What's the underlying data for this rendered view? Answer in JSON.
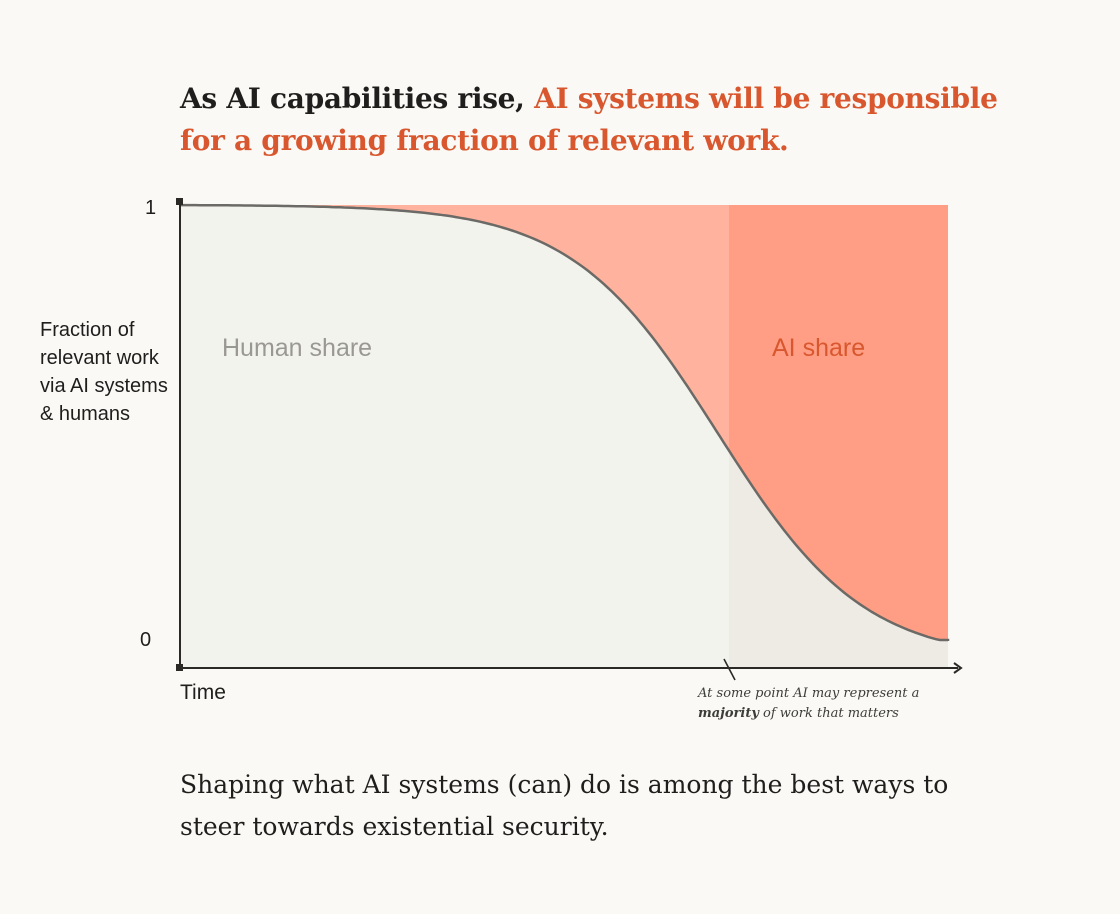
{
  "headline": {
    "part1": "As AI capabilities rise, ",
    "part2": "AI systems will be responsible for a growing fraction of relevant work."
  },
  "chart_data": {
    "type": "area",
    "ylabel": "Fraction of relevant work via AI systems & humans",
    "xlabel": "Time",
    "y_ticks": [
      "1",
      "0"
    ],
    "ylim": [
      0,
      1
    ],
    "regions": [
      {
        "name": "Human share",
        "position": "below curve",
        "color": "#f3f3ee"
      },
      {
        "name": "AI share",
        "position": "above curve",
        "color": "#ffb39e"
      }
    ],
    "curve": "logistic decline of human share from ~1 toward ~0 over time",
    "annotation": {
      "text_before": "At some point AI  may represent a ",
      "bold": "majority",
      "text_after": " of work that matters"
    },
    "colors": {
      "human_fill": "#f3f3ee",
      "human_fill_late": "#edebe4",
      "ai_fill": "#ffb39e",
      "ai_fill_late": "#ff9e84",
      "accent": "#d9572e"
    }
  },
  "footer": "Shaping what AI systems (can) do is among the best ways to steer towards existential security."
}
